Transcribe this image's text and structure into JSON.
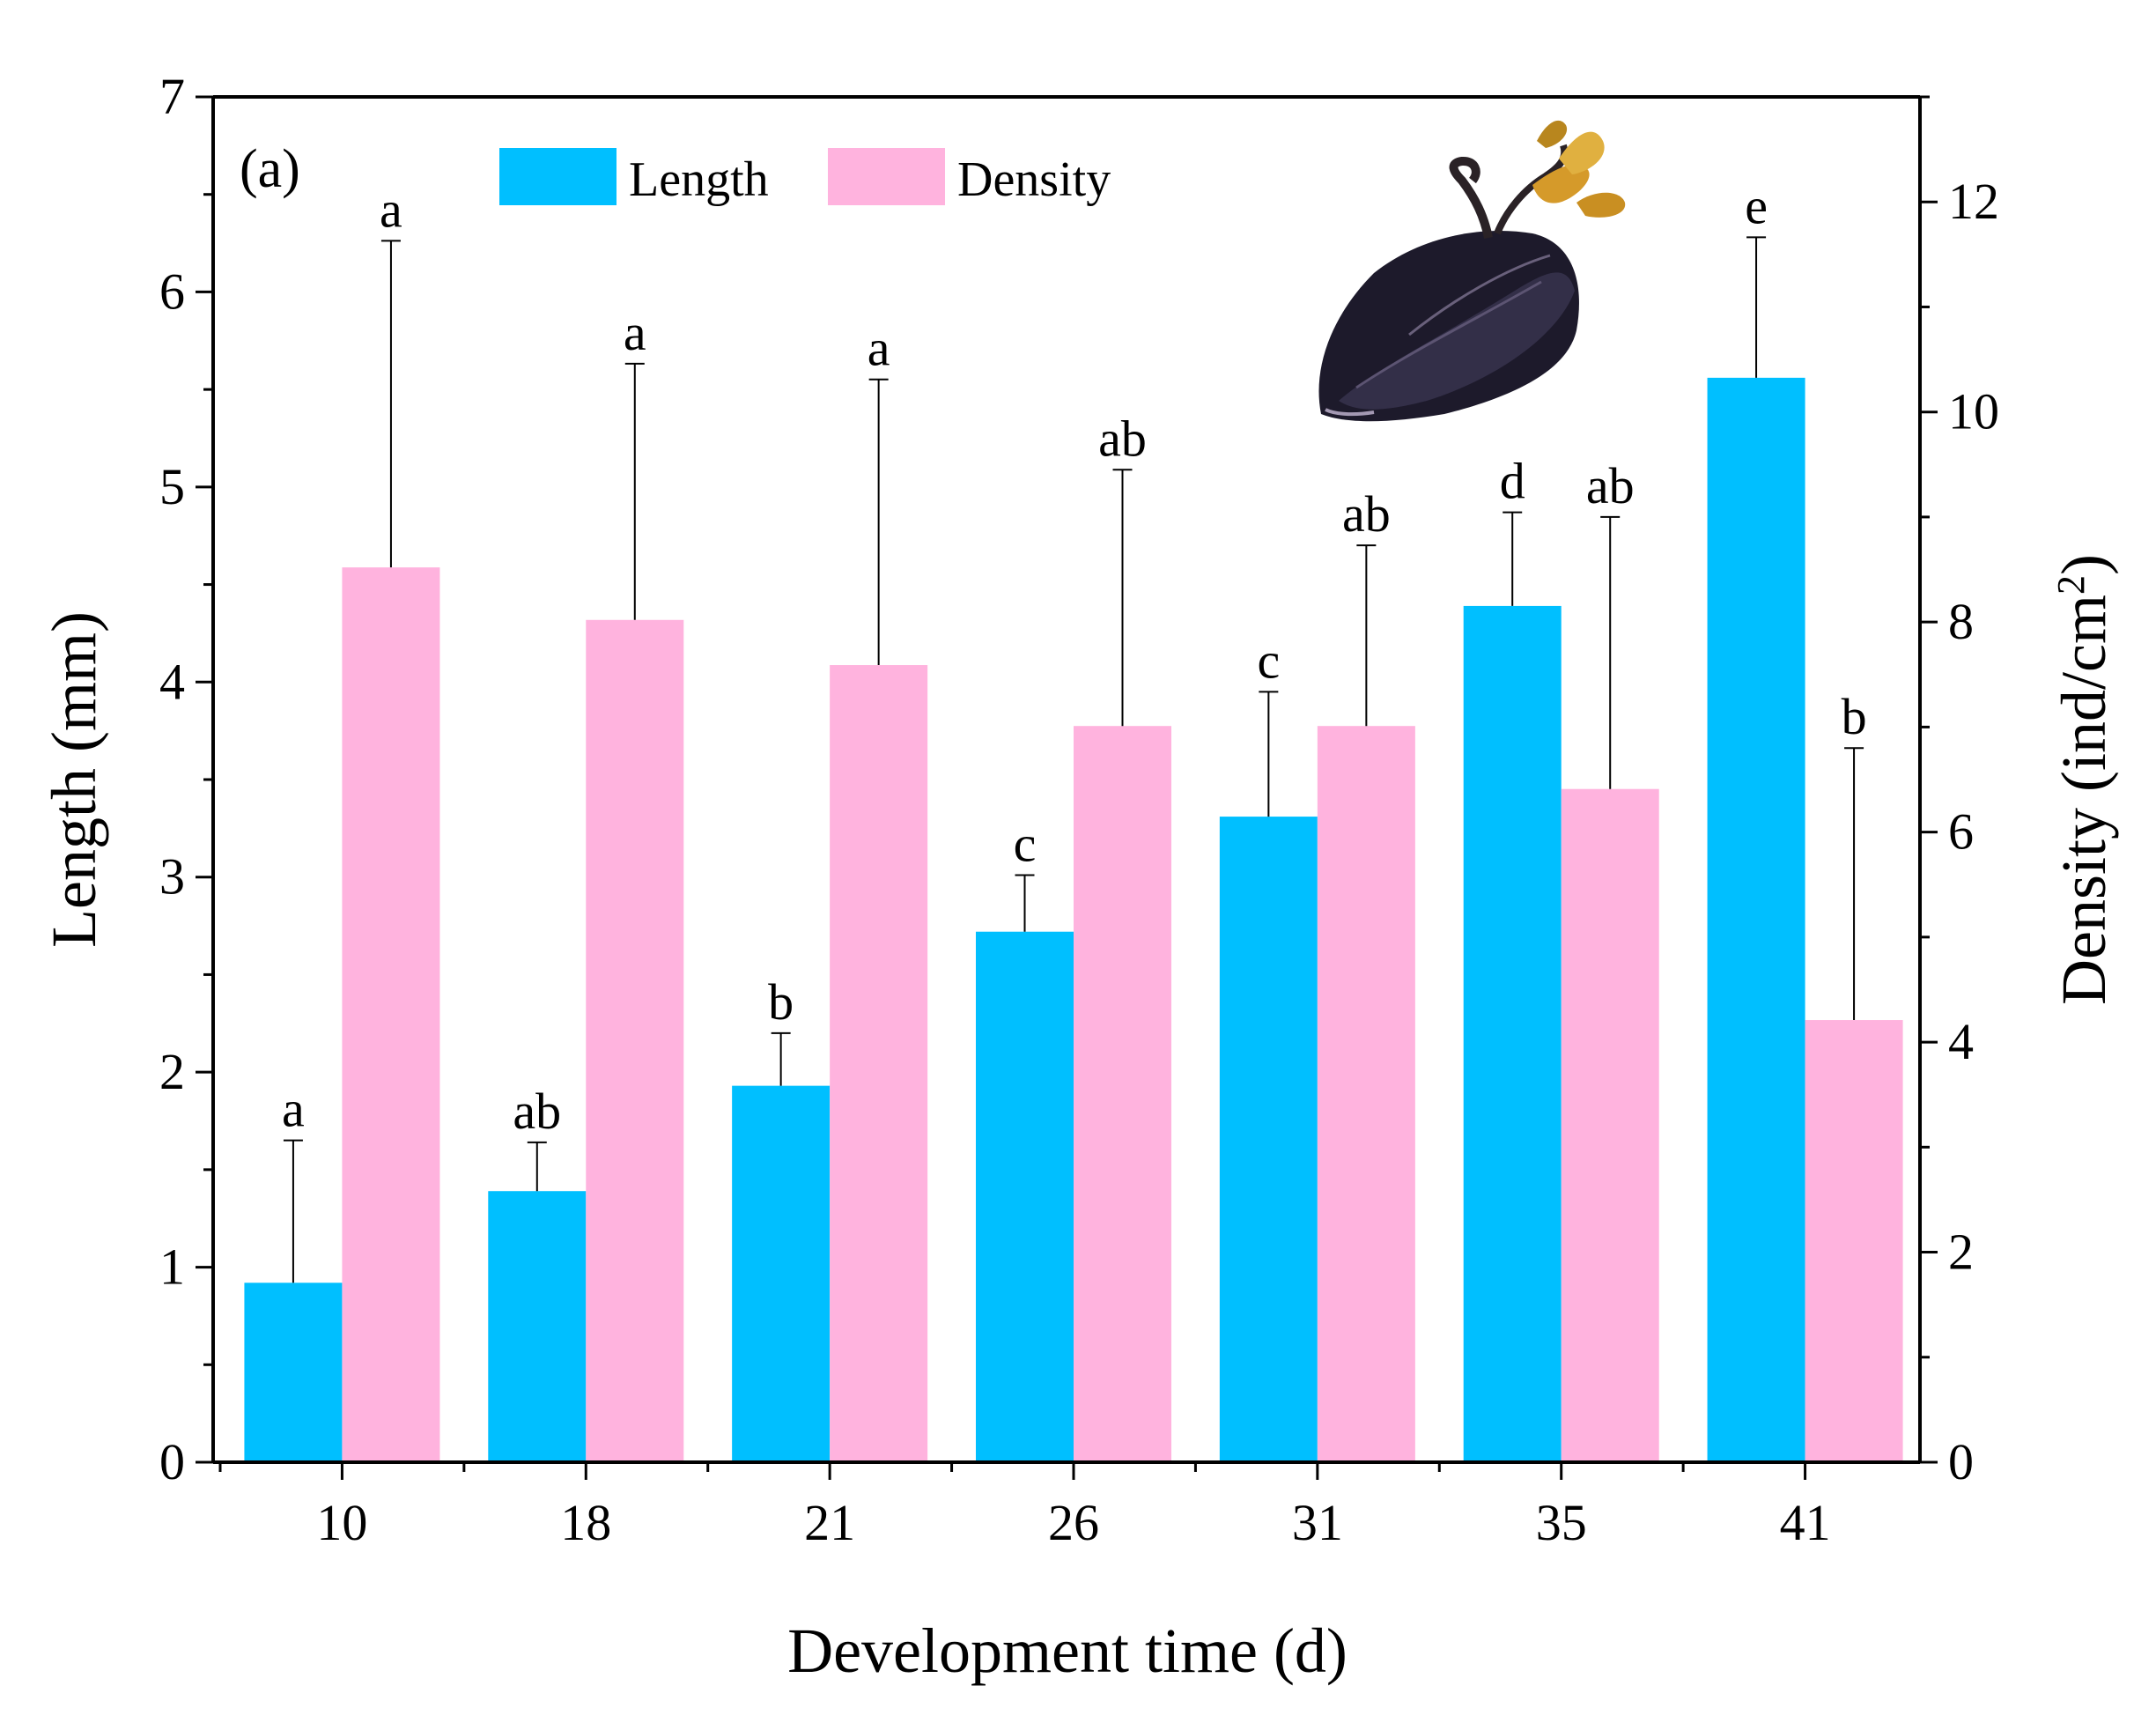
{
  "chart_data": {
    "type": "bar",
    "panel_label": "(a)",
    "title": "",
    "xlabel": "Development time (d)",
    "ylabel_left": "Length (mm)",
    "ylabel_right_main": "Density (ind/cm",
    "ylabel_right_sup": "2",
    "ylabel_right_close": ")",
    "categories": [
      "10",
      "18",
      "21",
      "26",
      "31",
      "35",
      "41"
    ],
    "ylim_left": [
      0,
      7
    ],
    "ylim_right": [
      0,
      13
    ],
    "yticks_left": [
      "0",
      "1",
      "2",
      "3",
      "4",
      "5",
      "6",
      "7"
    ],
    "yticks_right": [
      "0",
      "2",
      "4",
      "6",
      "8",
      "10",
      "12"
    ],
    "legend_position": "top-center",
    "series": [
      {
        "name": "Length",
        "axis": "left",
        "color": "#00BFFF",
        "values": [
          0.92,
          1.39,
          1.93,
          2.72,
          3.31,
          4.39,
          5.56
        ],
        "errors": [
          0.73,
          0.25,
          0.27,
          0.29,
          0.64,
          0.48,
          0.72
        ],
        "letters": [
          "a",
          "ab",
          "b",
          "c",
          "c",
          "d",
          "e"
        ]
      },
      {
        "name": "Density",
        "axis": "right",
        "color": "#FFB3DE",
        "values": [
          8.52,
          8.02,
          7.59,
          7.01,
          7.01,
          6.41,
          4.21
        ],
        "errors": [
          3.11,
          2.44,
          2.72,
          2.44,
          1.72,
          2.59,
          2.59
        ],
        "letters": [
          "a",
          "a",
          "a",
          "ab",
          "ab",
          "ab",
          "b"
        ]
      }
    ]
  },
  "inset_image": "mussel-photo"
}
